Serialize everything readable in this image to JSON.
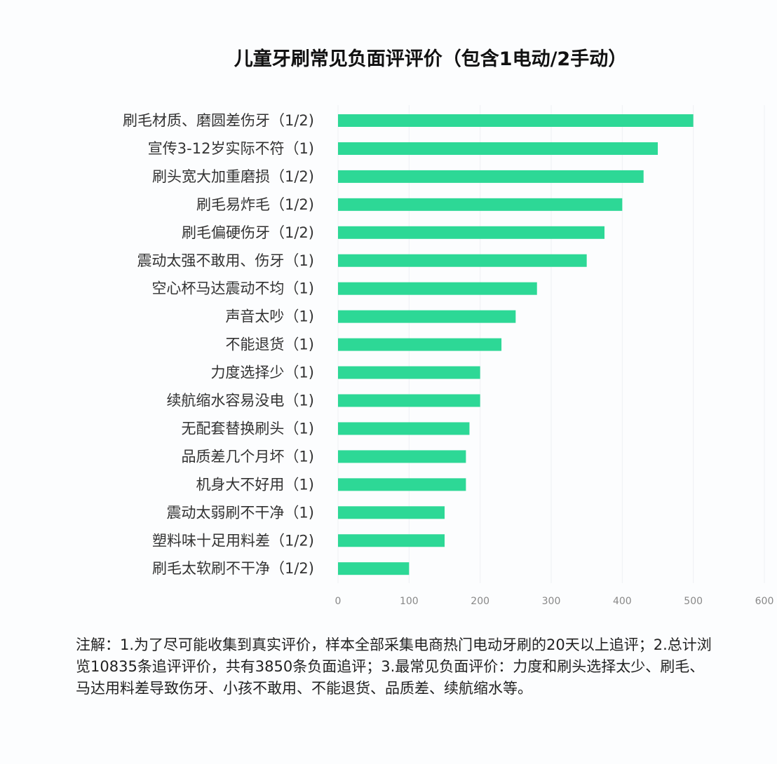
{
  "chart_data": {
    "type": "bar",
    "orientation": "horizontal",
    "title": "儿童牙刷常见负面评评价（包含1电动/2手动）",
    "categories": [
      "刷毛材质、磨圆差伤牙（1/2)",
      "宣传3-12岁实际不符（1)",
      "刷头宽大加重磨损（1/2)",
      "刷毛易炸毛（1/2)",
      "刷毛偏硬伤牙（1/2)",
      "震动太强不敢用、伤牙（1)",
      "空心杯马达震动不均（1)",
      "声音太吵（1)",
      "不能退货（1)",
      "力度选择少（1)",
      "续航缩水容易没电（1)",
      "无配套替换刷头（1)",
      "品质差几个月坏（1)",
      "机身大不好用（1)",
      "震动太弱刷不干净（1)",
      "塑料味十足用料差（1/2)",
      "刷毛太软刷不干净（1/2)"
    ],
    "values": [
      500,
      450,
      430,
      400,
      375,
      350,
      280,
      250,
      230,
      200,
      200,
      185,
      180,
      180,
      150,
      150,
      100
    ],
    "xlim": [
      0,
      600
    ],
    "xticks": [
      "0",
      "100",
      "200",
      "300",
      "400",
      "500",
      "600"
    ],
    "grid": true,
    "bar_color": "#2dd896",
    "xlabel": "",
    "ylabel": ""
  },
  "note": "注解：1.为了尽可能收集到真实评价，样本全部采集电商热门电动牙刷的20天以上追评；2.总计浏览10835条追评评价，共有3850条负面追评；3.最常见负面评价：力度和刷头选择太少、刷毛、马达用料差导致伤牙、小孩不敢用、不能退货、品质差、续航缩水等。"
}
